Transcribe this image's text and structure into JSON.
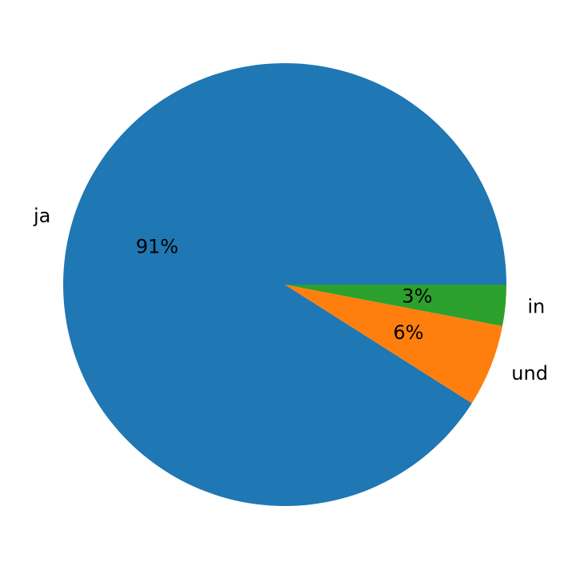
{
  "chart_data": {
    "type": "pie",
    "categories": [
      "ja",
      "und",
      "in"
    ],
    "values": [
      91,
      6,
      3
    ],
    "value_labels": [
      "91%",
      "6%",
      "3%"
    ],
    "colors": [
      "#1f77b4",
      "#ff7f0e",
      "#2ca02c"
    ]
  }
}
